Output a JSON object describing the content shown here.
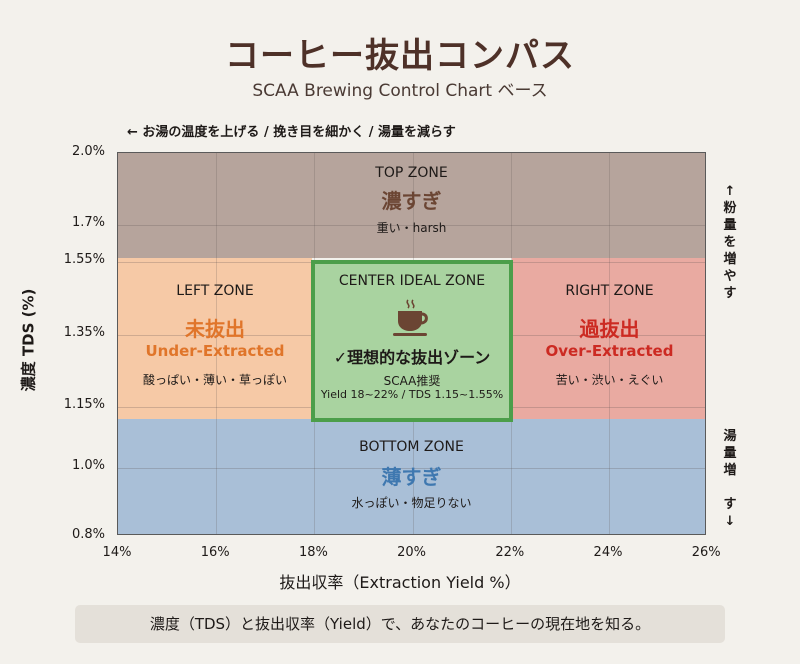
{
  "header": {
    "title": "コーヒー抜出コンパス",
    "subtitle": "SCAA Brewing Control Chart ベース",
    "top_hint": "← お湯の温度を上げる / 挽き目を細かく / 湯量を減らす"
  },
  "right_hints": {
    "up": [
      "↑",
      "粉",
      "量",
      "を",
      "増",
      "や",
      "す"
    ],
    "down": [
      "湯",
      "量",
      "増",
      "",
      "す",
      "↓"
    ]
  },
  "axes": {
    "x_label": "抜出収率（Extraction Yield %）",
    "y_label": "濃度 TDS (%)",
    "x_ticks": [
      "14%",
      "16%",
      "18%",
      "20%",
      "22%",
      "24%",
      "26%"
    ],
    "y_ticks": [
      "2.0%",
      "1.7%",
      "1.55%",
      "1.35%",
      "1.15%",
      "1.0%",
      "0.8%"
    ]
  },
  "zones": {
    "top": {
      "name": "TOP ZONE",
      "jp": "濃すぎ",
      "desc": "重い・harsh",
      "color": "#b6a49c"
    },
    "left": {
      "name": "LEFT ZONE",
      "jp": "未抜出",
      "en": "Under-Extracted",
      "desc": "酸っぱい・薄い・草っぽい",
      "color": "#f6c9a6",
      "accent": "#e0752a"
    },
    "center": {
      "name": "CENTER IDEAL ZONE",
      "icon": "coffee-cup-icon",
      "jp": "✓理想的な抜出ゾーン",
      "rec": "SCAA推奨",
      "range": "Yield 18~22% / TDS 1.15~1.55%",
      "color": "#a9d3a0",
      "border": "#4c9e4a"
    },
    "right": {
      "name": "RIGHT ZONE",
      "jp": "過抜出",
      "en": "Over-Extracted",
      "desc": "苦い・渋い・えぐい",
      "color": "#e9aaa1",
      "accent": "#cc2a22"
    },
    "bottom": {
      "name": "BOTTOM ZONE",
      "jp": "薄すぎ",
      "desc": "水っぽい・物足りない",
      "color": "#a9bfd7",
      "accent": "#3f78b0"
    }
  },
  "footer": "濃度（TDS）と抜出収率（Yield）で、あなたのコーヒーの現在地を知る。"
}
